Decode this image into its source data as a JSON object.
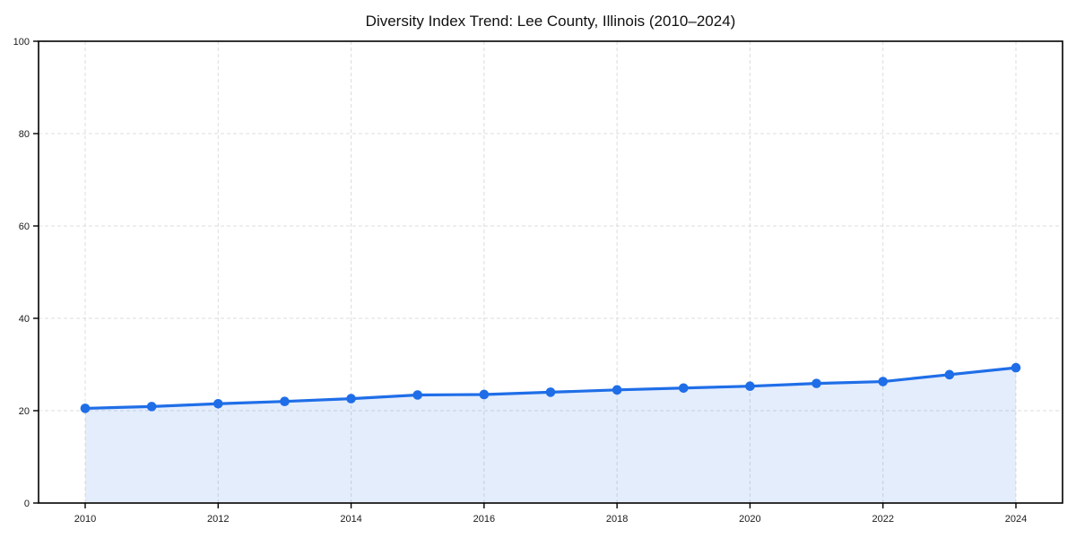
{
  "chart_data": {
    "type": "line",
    "title": "Diversity Index Trend: Lee County, Illinois (2010–2024)",
    "series_name": "Diversity Index",
    "x": [
      2010,
      2011,
      2012,
      2013,
      2014,
      2015,
      2016,
      2017,
      2018,
      2019,
      2020,
      2021,
      2022,
      2023,
      2024
    ],
    "values": [
      20.5,
      20.9,
      21.5,
      22.0,
      22.6,
      23.4,
      23.5,
      24.0,
      24.5,
      24.9,
      25.3,
      25.9,
      26.3,
      27.8,
      29.3
    ],
    "xticks": [
      2010,
      2012,
      2014,
      2016,
      2018,
      2020,
      2022,
      2024
    ],
    "yticks": [
      0,
      20,
      40,
      60,
      80,
      100
    ],
    "ylim": [
      0,
      100
    ],
    "xlabel": "",
    "ylabel": "",
    "legend": "none",
    "grid": "dashed",
    "marker": "circle",
    "area_fill": true,
    "colors": {
      "line": "#1f6ee8",
      "marker": "#1f6ee8",
      "area": "rgba(31,110,232,0.12)",
      "grid": "#dcdcdc",
      "axis": "#000000",
      "tick_text": "#1a1a1a",
      "title_text": "#111111",
      "background": "#ffffff"
    }
  }
}
